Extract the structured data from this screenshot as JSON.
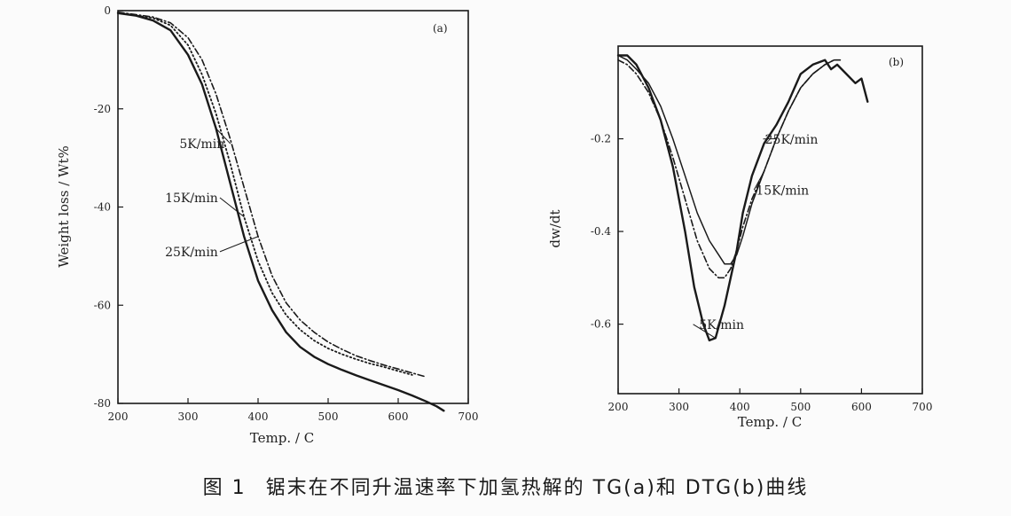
{
  "caption": {
    "figure_number": "图 1",
    "text": "锯末在不同升温速率下加氢热解的 TG(a)和 DTG(b)曲线"
  },
  "colors": {
    "ink": "#1a1a1a",
    "background": "#fbfbfb"
  },
  "chart_data": [
    {
      "type": "line",
      "panel_label": "(a)",
      "xlabel": "Temp. / C",
      "ylabel": "Weight loss / Wt%",
      "xlim": [
        200,
        700
      ],
      "ylim": [
        0,
        -80
      ],
      "x_ticks": [
        200,
        300,
        400,
        500,
        600,
        700
      ],
      "x_tick_labels": [
        "200",
        "300",
        "400",
        "500",
        "600",
        "700"
      ],
      "y_ticks": [
        0,
        -20,
        -40,
        -60,
        -80
      ],
      "y_tick_labels": [
        "0",
        "-20",
        "-40",
        "-60",
        "-80"
      ],
      "grid": false,
      "series": [
        {
          "name": "5K/min",
          "style": "solid",
          "x": [
            200,
            225,
            250,
            275,
            300,
            320,
            340,
            360,
            380,
            400,
            420,
            440,
            460,
            480,
            500,
            520,
            540,
            560,
            580,
            600,
            620,
            640,
            655,
            665
          ],
          "y": [
            -0.5,
            -1,
            -2,
            -4,
            -9,
            -15,
            -24,
            -35,
            -46,
            -55,
            -61,
            -65.5,
            -68.5,
            -70.5,
            -72,
            -73.2,
            -74.3,
            -75.3,
            -76.3,
            -77.3,
            -78.4,
            -79.6,
            -80.6,
            -81.5
          ]
        },
        {
          "name": "15K/min",
          "style": "dotted",
          "x": [
            200,
            225,
            250,
            275,
            300,
            320,
            340,
            360,
            380,
            400,
            420,
            440,
            460,
            480,
            500,
            520,
            540,
            560,
            580,
            600,
            620
          ],
          "y": [
            -0.5,
            -1,
            -1.5,
            -3,
            -7,
            -13,
            -21,
            -31,
            -42,
            -51,
            -57.5,
            -62,
            -65,
            -67.2,
            -68.8,
            -70,
            -71,
            -71.9,
            -72.6,
            -73.4,
            -74.2
          ]
        },
        {
          "name": "25K/min",
          "style": "dash-dot",
          "x": [
            200,
            225,
            250,
            275,
            300,
            320,
            340,
            360,
            380,
            400,
            420,
            440,
            460,
            480,
            500,
            520,
            540,
            560,
            580,
            600,
            620,
            640
          ],
          "y": [
            -0.3,
            -0.8,
            -1.3,
            -2.5,
            -5.5,
            -10,
            -17,
            -26,
            -36,
            -46,
            -54,
            -59.5,
            -63,
            -65.5,
            -67.5,
            -69,
            -70.3,
            -71.3,
            -72.2,
            -73,
            -73.8,
            -74.6
          ]
        }
      ],
      "annotations": [
        {
          "text": "5K/min",
          "x": 320,
          "y": -28
        },
        {
          "text": "15K/min",
          "x": 305,
          "y": -39
        },
        {
          "text": "25K/min",
          "x": 305,
          "y": -50
        }
      ]
    },
    {
      "type": "line",
      "panel_label": "(b)",
      "xlabel": "Temp. / C",
      "ylabel": "dw/dt",
      "xlim": [
        200,
        700
      ],
      "ylim": [
        0,
        -0.75
      ],
      "x_ticks": [
        200,
        300,
        400,
        500,
        600,
        700
      ],
      "x_tick_labels": [
        "200",
        "300",
        "400",
        "500",
        "600",
        "700"
      ],
      "y_ticks": [
        -0.2,
        -0.4,
        -0.6
      ],
      "y_tick_labels": [
        "-0.2",
        "-0.4",
        "-0.6"
      ],
      "grid": false,
      "series": [
        {
          "name": "5K/min",
          "style": "solid",
          "x": [
            200,
            215,
            230,
            250,
            270,
            290,
            310,
            325,
            340,
            350,
            360,
            375,
            385,
            395,
            405,
            420,
            440,
            460,
            480,
            500,
            520,
            540,
            550,
            560,
            575,
            590,
            600,
            610
          ],
          "y": [
            -0.02,
            -0.02,
            -0.04,
            -0.09,
            -0.16,
            -0.26,
            -0.4,
            -0.52,
            -0.6,
            -0.635,
            -0.63,
            -0.56,
            -0.5,
            -0.44,
            -0.36,
            -0.28,
            -0.21,
            -0.17,
            -0.12,
            -0.06,
            -0.04,
            -0.03,
            -0.05,
            -0.04,
            -0.06,
            -0.08,
            -0.07,
            -0.12
          ]
        },
        {
          "name": "15K/min",
          "style": "dash-dot",
          "x": [
            200,
            215,
            230,
            250,
            270,
            290,
            310,
            330,
            350,
            365,
            375,
            385,
            395,
            405,
            420,
            440,
            460,
            480,
            500,
            520,
            540,
            555,
            565
          ],
          "y": [
            -0.03,
            -0.04,
            -0.06,
            -0.1,
            -0.16,
            -0.24,
            -0.33,
            -0.42,
            -0.48,
            -0.5,
            -0.5,
            -0.48,
            -0.44,
            -0.39,
            -0.33,
            -0.27,
            -0.2,
            -0.14,
            -0.09,
            -0.06,
            -0.04,
            -0.03,
            -0.03
          ]
        },
        {
          "name": "25K/min",
          "style": "solid-thin",
          "x": [
            200,
            215,
            230,
            250,
            270,
            290,
            310,
            330,
            350,
            365,
            375,
            385,
            395,
            405,
            420,
            440,
            460,
            480,
            500,
            520,
            540,
            555,
            565
          ],
          "y": [
            -0.02,
            -0.03,
            -0.05,
            -0.08,
            -0.13,
            -0.2,
            -0.28,
            -0.36,
            -0.42,
            -0.45,
            -0.47,
            -0.47,
            -0.45,
            -0.41,
            -0.34,
            -0.27,
            -0.2,
            -0.14,
            -0.09,
            -0.06,
            -0.04,
            -0.03,
            -0.03
          ]
        }
      ],
      "annotations": [
        {
          "text": "25K/min",
          "x": 485,
          "y": -0.21
        },
        {
          "text": "15K/min",
          "x": 470,
          "y": -0.32
        },
        {
          "text": "5K/min",
          "x": 370,
          "y": -0.61
        }
      ]
    }
  ]
}
